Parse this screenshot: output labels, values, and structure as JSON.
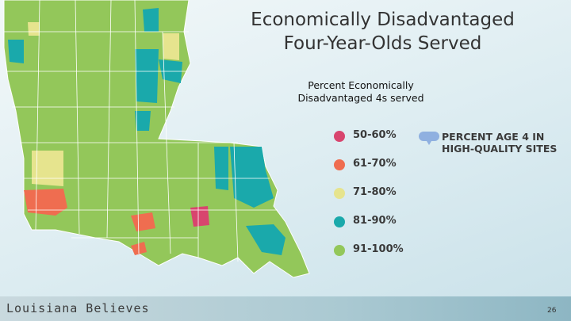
{
  "title": "Economically Disadvantaged Four-Year-Olds Served",
  "subtitle": "Percent Economically Disadvantaged 4s served",
  "legend": [
    {
      "label": "50-60%",
      "color": "#d8456e"
    },
    {
      "label": "61-70%",
      "color": "#ef6d50"
    },
    {
      "label": "71-80%",
      "color": "#e6e48e"
    },
    {
      "label": "81-90%",
      "color": "#1aa9ab"
    },
    {
      "label": "91-100%",
      "color": "#93c75a"
    }
  ],
  "marker_legend": {
    "label": "PERCENT AGE 4 IN HIGH-QUALITY SITES",
    "color": "#8fb0e0"
  },
  "footer": "Louisiana Believes",
  "page_number": "26"
}
